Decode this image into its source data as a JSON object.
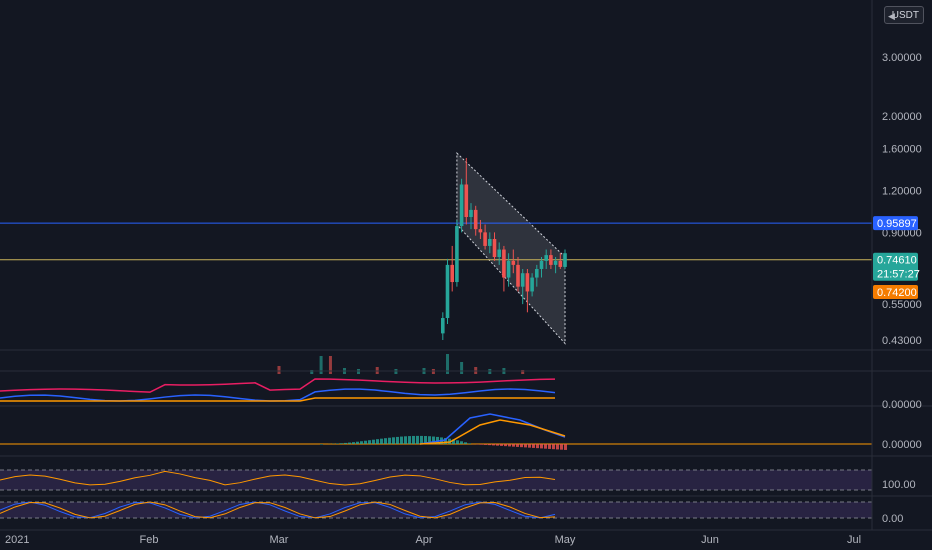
{
  "currency": {
    "label": "USDT",
    "icon": "lock-icon"
  },
  "chart_data": {
    "type": "candlestick",
    "title": "",
    "price_axis": {
      "scale": "log",
      "ticks": [
        "3.00000",
        "2.00000",
        "1.60000",
        "1.20000",
        "0.90000",
        "0.55000",
        "0.43000"
      ],
      "tick_values": [
        3.0,
        2.0,
        1.6,
        1.2,
        0.9,
        0.55,
        0.43
      ]
    },
    "time_axis": {
      "ticks": [
        "2021",
        "Feb",
        "Mar",
        "Apr",
        "May",
        "Jun",
        "Jul"
      ]
    },
    "horizontal_lines": [
      {
        "value": 0.95897,
        "label": "0.95897",
        "color": "#2962ff"
      },
      {
        "value": 0.7461,
        "label": "0.74610",
        "color": "#c9b35a"
      }
    ],
    "price_tags": [
      {
        "label": "0.95897",
        "value": 0.95897,
        "color": "#2962ff"
      },
      {
        "label": "0.74610",
        "sublabel": "21:57:27",
        "value": 0.7461,
        "color": "#26a69a"
      },
      {
        "label": "0.74200",
        "value": 0.742,
        "color": "#f57c00"
      }
    ],
    "channel": {
      "top_start": 1.55,
      "top_end": 0.76,
      "bottom_start": 0.95,
      "bottom_end": 0.42,
      "fill": "#b2b5be"
    },
    "candles": [
      {
        "d": "Apr 5",
        "o": 0.45,
        "h": 0.52,
        "l": 0.43,
        "c": 0.5
      },
      {
        "d": "Apr 6",
        "o": 0.5,
        "h": 0.75,
        "l": 0.48,
        "c": 0.72
      },
      {
        "d": "Apr 7",
        "o": 0.72,
        "h": 0.82,
        "l": 0.6,
        "c": 0.64
      },
      {
        "d": "Apr 8",
        "o": 0.64,
        "h": 0.98,
        "l": 0.62,
        "c": 0.94
      },
      {
        "d": "Apr 9",
        "o": 0.94,
        "h": 1.3,
        "l": 0.9,
        "c": 1.25
      },
      {
        "d": "Apr 10",
        "o": 1.25,
        "h": 1.5,
        "l": 0.95,
        "c": 1.0
      },
      {
        "d": "Apr 11",
        "o": 1.0,
        "h": 1.1,
        "l": 0.92,
        "c": 1.05
      },
      {
        "d": "Apr 12",
        "o": 1.05,
        "h": 1.08,
        "l": 0.88,
        "c": 0.92
      },
      {
        "d": "Apr 13",
        "o": 0.92,
        "h": 0.98,
        "l": 0.86,
        "c": 0.9
      },
      {
        "d": "Apr 14",
        "o": 0.9,
        "h": 0.95,
        "l": 0.8,
        "c": 0.82
      },
      {
        "d": "Apr 15",
        "o": 0.82,
        "h": 0.9,
        "l": 0.78,
        "c": 0.86
      },
      {
        "d": "Apr 16",
        "o": 0.86,
        "h": 0.9,
        "l": 0.74,
        "c": 0.76
      },
      {
        "d": "Apr 17",
        "o": 0.76,
        "h": 0.84,
        "l": 0.72,
        "c": 0.8
      },
      {
        "d": "Apr 18",
        "o": 0.8,
        "h": 0.82,
        "l": 0.6,
        "c": 0.66
      },
      {
        "d": "Apr 19",
        "o": 0.66,
        "h": 0.78,
        "l": 0.62,
        "c": 0.74
      },
      {
        "d": "Apr 20",
        "o": 0.74,
        "h": 0.8,
        "l": 0.68,
        "c": 0.72
      },
      {
        "d": "Apr 21",
        "o": 0.72,
        "h": 0.76,
        "l": 0.6,
        "c": 0.62
      },
      {
        "d": "Apr 22",
        "o": 0.62,
        "h": 0.7,
        "l": 0.55,
        "c": 0.68
      },
      {
        "d": "Apr 23",
        "o": 0.68,
        "h": 0.7,
        "l": 0.52,
        "c": 0.6
      },
      {
        "d": "Apr 24",
        "o": 0.6,
        "h": 0.68,
        "l": 0.58,
        "c": 0.66
      },
      {
        "d": "Apr 25",
        "o": 0.66,
        "h": 0.72,
        "l": 0.62,
        "c": 0.7
      },
      {
        "d": "Apr 26",
        "o": 0.7,
        "h": 0.76,
        "l": 0.66,
        "c": 0.74
      },
      {
        "d": "Apr 27",
        "o": 0.74,
        "h": 0.8,
        "l": 0.7,
        "c": 0.77
      },
      {
        "d": "Apr 28",
        "o": 0.77,
        "h": 0.8,
        "l": 0.7,
        "c": 0.72
      },
      {
        "d": "Apr 29",
        "o": 0.72,
        "h": 0.76,
        "l": 0.68,
        "c": 0.74
      },
      {
        "d": "Apr 30",
        "o": 0.74,
        "h": 0.78,
        "l": 0.7,
        "c": 0.71
      },
      {
        "d": "May 1",
        "o": 0.71,
        "h": 0.8,
        "l": 0.7,
        "c": 0.78
      }
    ],
    "volume": [
      {
        "d": "Mar 1",
        "v": 8
      },
      {
        "d": "Mar 8",
        "v": 4
      },
      {
        "d": "Mar 10",
        "v": 18
      },
      {
        "d": "Mar 12",
        "v": 18
      },
      {
        "d": "Mar 15",
        "v": 6
      },
      {
        "d": "Mar 18",
        "v": 5
      },
      {
        "d": "Mar 22",
        "v": 7
      },
      {
        "d": "Mar 26",
        "v": 5
      },
      {
        "d": "Apr 1",
        "v": 6
      },
      {
        "d": "Apr 3",
        "v": 5
      },
      {
        "d": "Apr 6",
        "v": 20
      },
      {
        "d": "Apr 9",
        "v": 12
      },
      {
        "d": "Apr 12",
        "v": 7
      },
      {
        "d": "Apr 15",
        "v": 5
      },
      {
        "d": "Apr 18",
        "v": 6
      },
      {
        "d": "Apr 22",
        "v": 4
      }
    ],
    "panes": [
      {
        "name": "",
        "ticks": [
          "0.00000"
        ]
      },
      {
        "name": "",
        "ticks": [
          "0.00000"
        ]
      },
      {
        "name": "",
        "ticks": [
          "100.00"
        ]
      },
      {
        "name": "",
        "ticks": [
          "0.00"
        ]
      }
    ],
    "grid": false
  }
}
